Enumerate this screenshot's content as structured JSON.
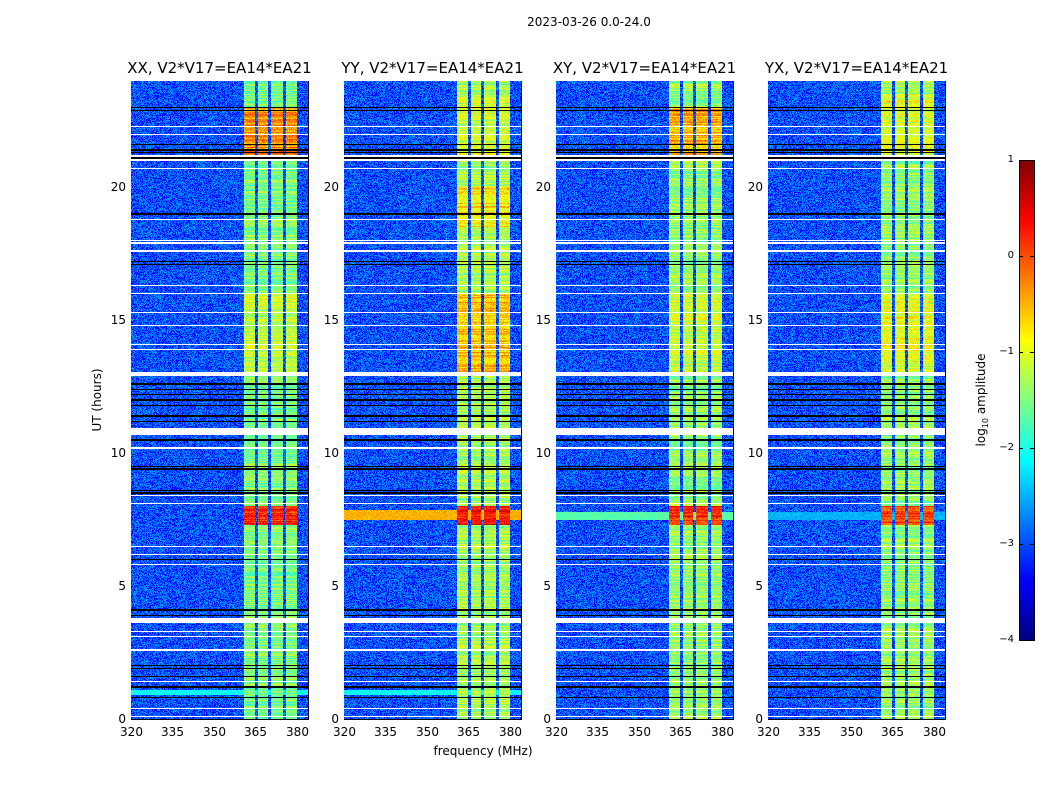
{
  "suptitle": "2023-03-26 0.0-24.0",
  "xlabel": "frequency (MHz)",
  "ylabel": "UT (hours)",
  "colorbar": {
    "label": "log10 amplitude",
    "label_main": "log",
    "label_sub": "10",
    "label_rest": " amplitude",
    "range": [
      -4,
      1
    ],
    "ticks": [
      "1",
      "0",
      "−1",
      "−2",
      "−3",
      "−4"
    ],
    "tick_values": [
      1,
      0,
      -1,
      -2,
      -3,
      -4
    ],
    "colormap": "jet"
  },
  "chart_data": {
    "type": "heatmap",
    "title": "2023-03-26 0.0-24.0",
    "xlabel": "frequency (MHz)",
    "ylabel": "UT (hours)",
    "xlim": [
      320,
      384
    ],
    "ylim": [
      0,
      24
    ],
    "xticks": [
      "320",
      "335",
      "350",
      "365",
      "380"
    ],
    "xtick_values": [
      320,
      335,
      350,
      365,
      380
    ],
    "yticks": [
      "0",
      "5",
      "10",
      "15",
      "20"
    ],
    "ytick_values": [
      0,
      5,
      10,
      15,
      20
    ],
    "zlim": [
      -4,
      1
    ],
    "background_level": -3.0,
    "channel_bands_mhz": [
      [
        361,
        365
      ],
      [
        366,
        369.5
      ],
      [
        370.5,
        375
      ],
      [
        376,
        380
      ]
    ],
    "flagged_hours_thick": [
      [
        21.0,
        21.2
      ],
      [
        12.9,
        13.05
      ],
      [
        10.7,
        10.95
      ],
      [
        3.6,
        3.8
      ]
    ],
    "flagged_hours_thin": [
      22.3,
      22.0,
      20.7,
      18.8,
      18.0,
      17.9,
      17.6,
      16.3,
      16.0,
      15.3,
      14.8,
      14.1,
      13.9,
      10.2,
      8.4,
      8.1,
      6.5,
      6.2,
      5.8,
      3.3,
      3.1,
      2.6,
      1.4,
      0.4,
      0.1
    ],
    "dark_hours": [
      23.0,
      22.9,
      21.6,
      21.4,
      21.3,
      21.1,
      19.0,
      17.2,
      17.1,
      12.6,
      12.4,
      12.2,
      12.0,
      11.8,
      11.4,
      11.2,
      10.5,
      9.5,
      9.4,
      8.6,
      8.5,
      6.0,
      4.1,
      3.9,
      2.0,
      1.9,
      1.6,
      1.2,
      0.8
    ],
    "panels": [
      {
        "title": "XX, V2*V17=EA14*EA21",
        "band_default": -1.5,
        "band_segments": [
          {
            "hours": [
              21.2,
              23.0
            ],
            "level": -0.3
          },
          {
            "hours": [
              7.3,
              8.0
            ],
            "level": 0.2
          },
          {
            "hours": [
              13.0,
              16.0
            ],
            "level": -1.2
          }
        ],
        "wideband_segments": [
          {
            "hours": [
              0.9,
              1.1
            ],
            "level": -2.1
          }
        ]
      },
      {
        "title": "YY, V2*V17=EA14*EA21",
        "band_default": -1.3,
        "band_segments": [
          {
            "hours": [
              21.2,
              23.5
            ],
            "level": -1.1
          },
          {
            "hours": [
              7.3,
              8.0
            ],
            "level": 0.3
          },
          {
            "hours": [
              13.0,
              16.0
            ],
            "level": -0.6
          },
          {
            "hours": [
              18.5,
              20.0
            ],
            "level": -0.8
          }
        ],
        "wideband_segments": [
          {
            "hours": [
              7.5,
              7.85
            ],
            "level": -0.5
          },
          {
            "hours": [
              0.9,
              1.1
            ],
            "level": -2.1
          }
        ]
      },
      {
        "title": "XY, V2*V17=EA14*EA21",
        "band_default": -1.4,
        "band_segments": [
          {
            "hours": [
              21.2,
              23.0
            ],
            "level": -0.5
          },
          {
            "hours": [
              7.3,
              8.0
            ],
            "level": 0.2
          },
          {
            "hours": [
              13.0,
              16.0
            ],
            "level": -1.1
          }
        ],
        "wideband_segments": [
          {
            "hours": [
              7.5,
              7.8
            ],
            "level": -1.7
          }
        ]
      },
      {
        "title": "YX, V2*V17=EA14*EA21",
        "band_default": -1.4,
        "band_segments": [
          {
            "hours": [
              21.2,
              23.5
            ],
            "level": -1.0
          },
          {
            "hours": [
              7.3,
              8.0
            ],
            "level": 0.0
          },
          {
            "hours": [
              13.0,
              16.0
            ],
            "level": -1.0
          }
        ],
        "wideband_segments": [
          {
            "hours": [
              7.5,
              7.8
            ],
            "level": -2.5
          }
        ]
      }
    ]
  }
}
